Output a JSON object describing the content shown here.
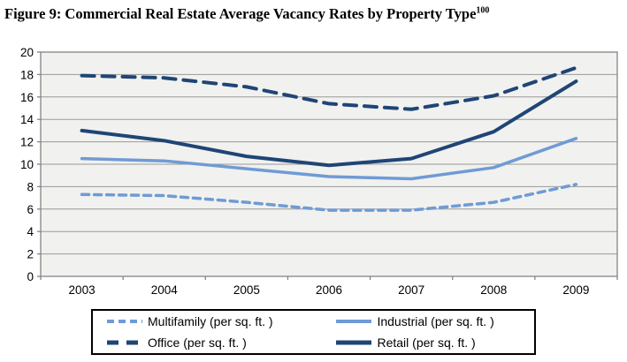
{
  "title": {
    "text": "Figure 9: Commercial Real Estate Average Vacancy Rates by Property Type",
    "superscript": "100"
  },
  "colors": {
    "light_blue": "#6F9BD5",
    "dark_blue": "#1F4576",
    "plot_bg": "#f1f1ef",
    "gridline": "#999999",
    "plot_border": "#848484"
  },
  "chart_data": {
    "type": "line",
    "title": "Figure 9: Commercial Real Estate Average Vacancy Rates by Property Type",
    "categories": [
      "2003",
      "2004",
      "2005",
      "2006",
      "2007",
      "2008",
      "2009"
    ],
    "series": [
      {
        "name": "Multifamily (per sq. ft. )",
        "style": "dashed",
        "color": "#6F9BD5",
        "width": 3.5,
        "dash": "8 6",
        "values": [
          7.3,
          7.2,
          6.6,
          5.9,
          5.9,
          6.6,
          8.2
        ]
      },
      {
        "name": "Industrial (per sq. ft. )",
        "style": "solid",
        "color": "#6F9BD5",
        "width": 3.5,
        "dash": "",
        "values": [
          10.5,
          10.3,
          9.6,
          8.9,
          8.7,
          9.7,
          12.3
        ]
      },
      {
        "name": "Office (per sq. ft. )",
        "style": "dashed",
        "color": "#1F4576",
        "width": 4,
        "dash": "14 9",
        "values": [
          17.9,
          17.7,
          16.9,
          15.4,
          14.9,
          16.1,
          18.6
        ]
      },
      {
        "name": "Retail (per sq. ft. )",
        "style": "solid",
        "color": "#1F4576",
        "width": 4,
        "dash": "",
        "values": [
          13.0,
          12.1,
          10.7,
          9.9,
          10.5,
          12.9,
          17.4
        ]
      }
    ],
    "xlabel": "",
    "ylabel": "",
    "ylim": [
      0,
      20
    ],
    "yticks": [
      0,
      2,
      4,
      6,
      8,
      10,
      12,
      14,
      16,
      18,
      20
    ],
    "grid": true,
    "legend_position": "bottom"
  },
  "legend": {
    "items": [
      {
        "label": "Multifamily (per sq. ft. )"
      },
      {
        "label": "Industrial (per sq. ft. )"
      },
      {
        "label": "Office (per sq. ft. )"
      },
      {
        "label": "Retail (per sq. ft. )"
      }
    ]
  }
}
